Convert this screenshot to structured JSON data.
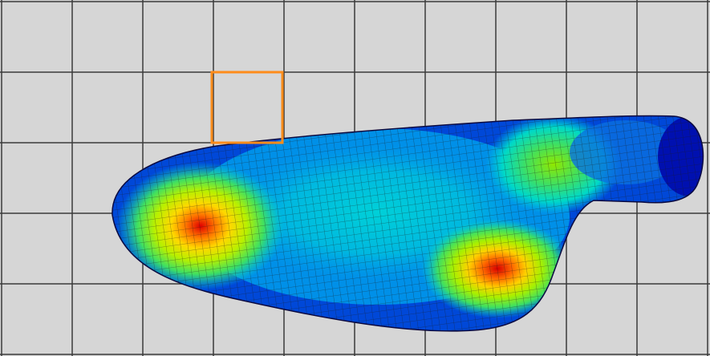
{
  "viewport": {
    "background_color": "#d6d6d6",
    "grid_line_color": "#3a3a3a",
    "grid_columns": 10,
    "grid_rows": 5
  },
  "selection_box": {
    "color": "#ff8c1a",
    "grid_col": 3,
    "grid_row": 1
  },
  "contour_plot": {
    "colormap": [
      "#0010b0",
      "#0050e0",
      "#00a0e8",
      "#00d8d0",
      "#40e060",
      "#b8f000",
      "#ffd800",
      "#ff7800",
      "#e00000"
    ],
    "hotspots": 3,
    "mesh_line_color": "#1a1a1a"
  }
}
